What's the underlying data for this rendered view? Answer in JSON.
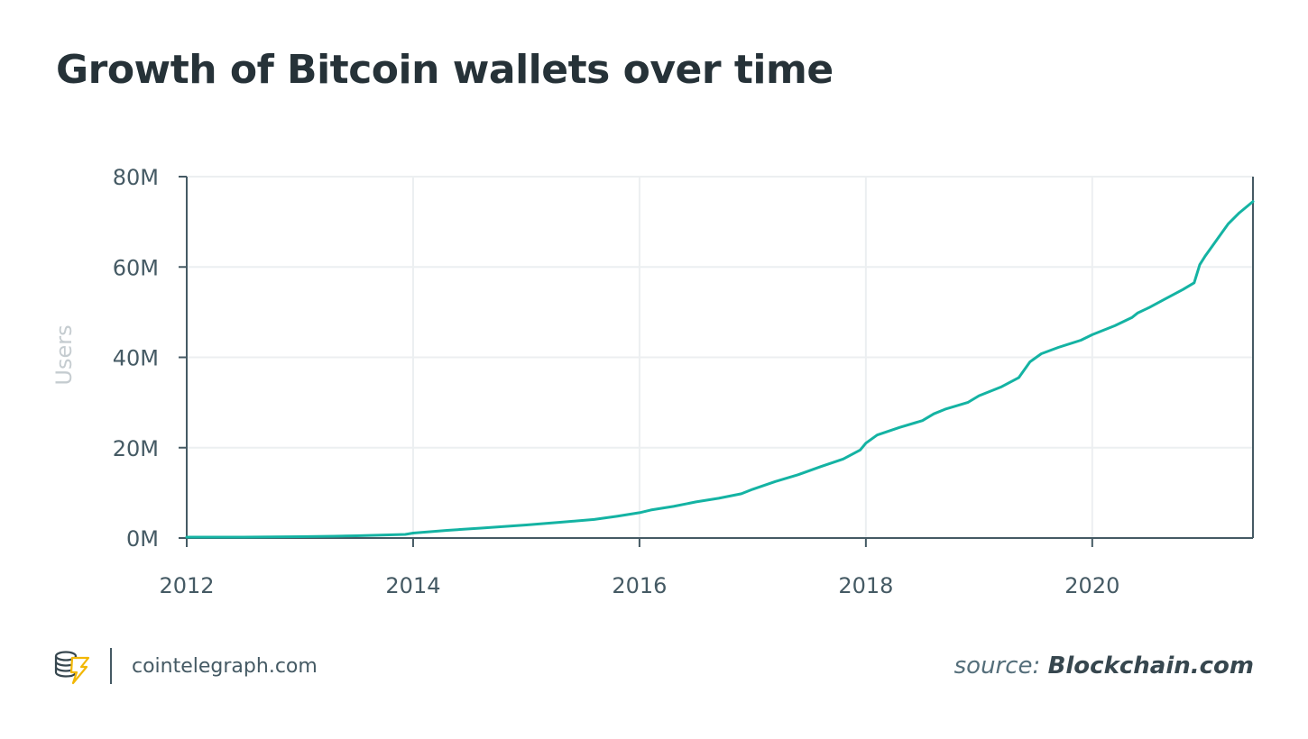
{
  "title": "Growth of Bitcoin wallets over time",
  "footer": {
    "brand_site": "cointelegraph.com",
    "source_prefix": "source:",
    "source_name": "Blockchain.com"
  },
  "colors": {
    "line": "#14b3a3",
    "text": "#263238",
    "axis": "#455a64",
    "grid": "#eceff1",
    "ylabel": "#c5ccd0",
    "logo_gold": "#f2b705"
  },
  "chart_data": {
    "type": "line",
    "title": "Growth of Bitcoin wallets over time",
    "xlabel": "",
    "ylabel": "Users",
    "xlim": [
      2012,
      2021.42
    ],
    "ylim": [
      0,
      80
    ],
    "x_ticks": [
      2012,
      2014,
      2016,
      2018,
      2020
    ],
    "x_tick_labels": [
      "2012",
      "2014",
      "2016",
      "2018",
      "2020"
    ],
    "y_ticks": [
      0,
      20,
      40,
      60,
      80
    ],
    "y_tick_labels": [
      "0M",
      "20M",
      "40M",
      "60M",
      "80M"
    ],
    "grid": true,
    "series": [
      {
        "x": [
          2012.0,
          2012.5,
          2013.0,
          2013.3,
          2013.5,
          2013.93,
          2014.0,
          2014.3,
          2014.6,
          2015.0,
          2015.3,
          2015.6,
          2015.8,
          2016.0,
          2016.1,
          2016.3,
          2016.5,
          2016.7,
          2016.9,
          2017.0,
          2017.2,
          2017.4,
          2017.6,
          2017.8,
          2017.95,
          2018.0,
          2018.1,
          2018.3,
          2018.5,
          2018.6,
          2018.7,
          2018.9,
          2019.0,
          2019.2,
          2019.35,
          2019.45,
          2019.55,
          2019.7,
          2019.9,
          2020.0,
          2020.2,
          2020.35,
          2020.4,
          2020.5,
          2020.65,
          2020.8,
          2020.9,
          2020.95,
          2021.0,
          2021.1,
          2021.2,
          2021.3,
          2021.42
        ],
        "y": [
          0.2,
          0.2,
          0.3,
          0.4,
          0.5,
          0.8,
          1.1,
          1.7,
          2.2,
          2.9,
          3.5,
          4.1,
          4.8,
          5.6,
          6.2,
          7.0,
          8.0,
          8.8,
          9.8,
          10.8,
          12.5,
          14.0,
          15.8,
          17.5,
          19.5,
          21.0,
          22.8,
          24.5,
          26.0,
          27.5,
          28.5,
          30.0,
          31.5,
          33.5,
          35.5,
          39.0,
          40.8,
          42.2,
          43.8,
          45.0,
          47.0,
          48.8,
          49.8,
          51.0,
          53.0,
          55.0,
          56.5,
          60.5,
          62.5,
          66.0,
          69.5,
          72.0,
          74.5
        ]
      }
    ],
    "source": "Blockchain.com"
  }
}
